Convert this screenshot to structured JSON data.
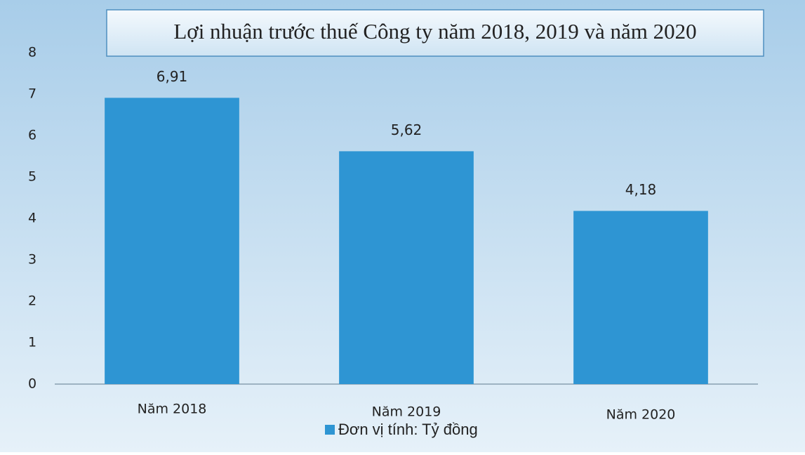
{
  "chart_data": {
    "type": "bar",
    "title": "Lợi nhuận trước thuế Công ty năm 2018, 2019 và năm 2020",
    "categories": [
      "Năm 2018",
      "Năm 2019",
      "Năm 2020"
    ],
    "series": [
      {
        "name": "Đơn vị tính: Tỷ đồng",
        "color": "#2e95d3",
        "values": [
          6.91,
          5.62,
          4.18
        ],
        "value_labels": [
          "6,91",
          "5,62",
          "4,18"
        ]
      }
    ],
    "ylim": [
      0,
      8
    ],
    "yticks": [
      0,
      1,
      2,
      3,
      4,
      5,
      6,
      7,
      8
    ],
    "grid": false,
    "legend": "bottom"
  }
}
